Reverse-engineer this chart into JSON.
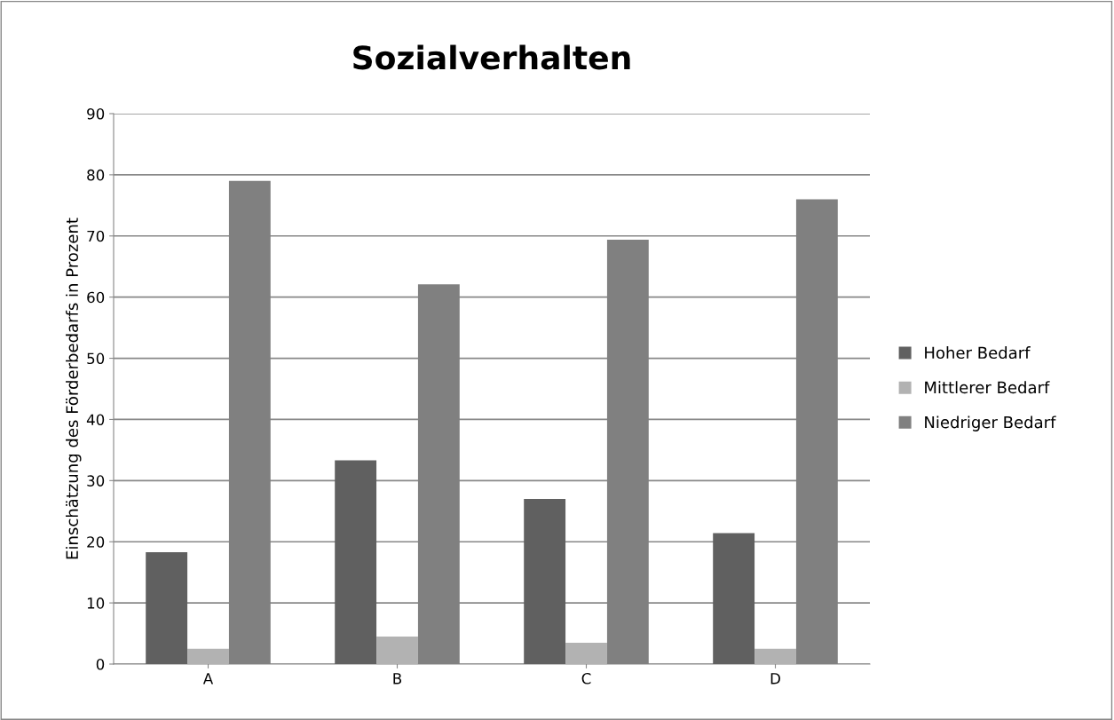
{
  "chart_data": {
    "type": "bar",
    "title": "Sozialverhalten",
    "ylabel": "Einschätzung des Förderbedarfs in Prozent",
    "categories": [
      "A",
      "B",
      "C",
      "D"
    ],
    "series": [
      {
        "name": "Hoher Bedarf",
        "color": "#606060",
        "values": [
          18.3,
          33.3,
          27.0,
          21.4
        ]
      },
      {
        "name": "Mittlerer Bedarf",
        "color": "#b2b2b2",
        "values": [
          2.5,
          4.5,
          3.5,
          2.5
        ]
      },
      {
        "name": "Niedriger Bedarf",
        "color": "#808080",
        "values": [
          79.0,
          62.1,
          69.4,
          76.0
        ]
      }
    ],
    "ylim": [
      0,
      90
    ],
    "yticks": [
      0,
      10,
      20,
      30,
      40,
      50,
      60,
      70,
      80,
      90
    ],
    "grid": "y",
    "legend": "right"
  }
}
